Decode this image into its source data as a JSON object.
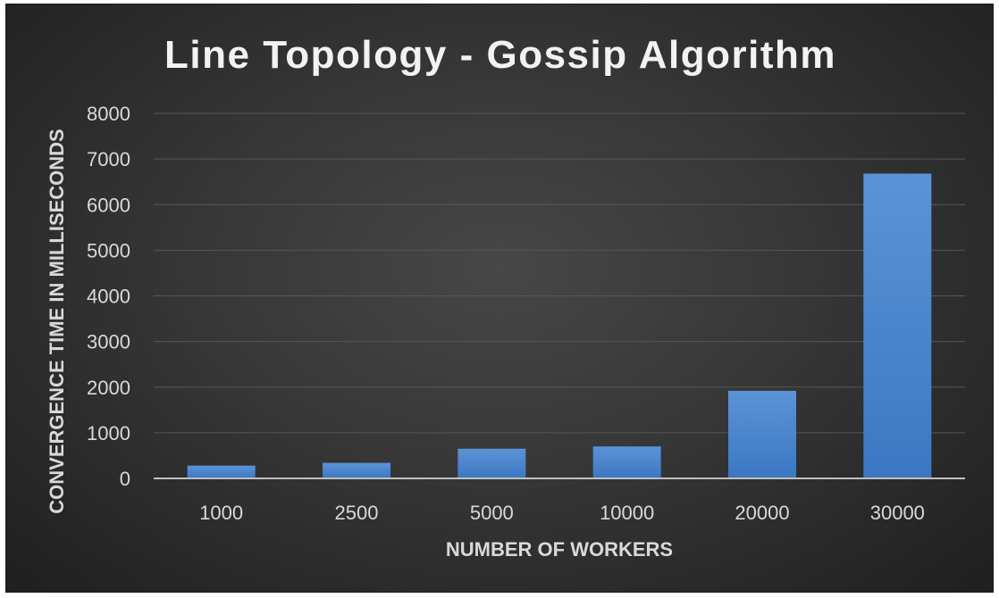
{
  "chart_data": {
    "type": "bar",
    "title": "Line Topology - Gossip Algorithm",
    "xlabel": "NUMBER OF WORKERS",
    "ylabel": "CONVERGENCE TIME IN MILLISECONDS",
    "categories": [
      "1000",
      "2500",
      "5000",
      "10000",
      "20000",
      "30000"
    ],
    "values": [
      280,
      340,
      650,
      700,
      1920,
      6680
    ],
    "ylim": [
      0,
      8000
    ],
    "yticks": [
      0,
      1000,
      2000,
      3000,
      4000,
      5000,
      6000,
      7000,
      8000
    ],
    "grid": true,
    "legend": "none",
    "bar_color_top": "#5b93d6",
    "bar_color_bottom": "#3b78c2",
    "background": "#3c3c3c"
  }
}
